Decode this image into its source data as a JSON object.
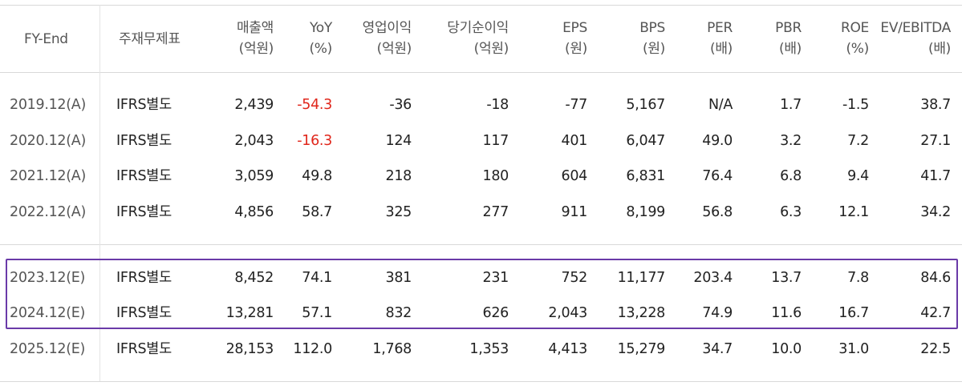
{
  "header": {
    "fy_end": "FY-End",
    "type": "주재무제표",
    "columns": [
      {
        "label": "매출액",
        "unit": "(억원)"
      },
      {
        "label": "YoY",
        "unit": "(%)"
      },
      {
        "label": "영업이익",
        "unit": "(억원)"
      },
      {
        "label": "당기순이익",
        "unit": "(억원)"
      },
      {
        "label": "EPS",
        "unit": "(원)"
      },
      {
        "label": "BPS",
        "unit": "(원)"
      },
      {
        "label": "PER",
        "unit": "(배)"
      },
      {
        "label": "PBR",
        "unit": "(배)"
      },
      {
        "label": "ROE",
        "unit": "(%)"
      },
      {
        "label": "EV/EBITDA",
        "unit": "(배)"
      }
    ]
  },
  "rows": [
    {
      "fy": "2019.12(A)",
      "type": "IFRS별도",
      "values": [
        "2,439",
        "-54.3",
        "-36",
        "-18",
        "-77",
        "5,167",
        "N/A",
        "1.7",
        "-1.5",
        "38.7"
      ],
      "yoy_negative": true
    },
    {
      "fy": "2020.12(A)",
      "type": "IFRS별도",
      "values": [
        "2,043",
        "-16.3",
        "124",
        "117",
        "401",
        "6,047",
        "49.0",
        "3.2",
        "7.2",
        "27.1"
      ],
      "yoy_negative": true
    },
    {
      "fy": "2021.12(A)",
      "type": "IFRS별도",
      "values": [
        "3,059",
        "49.8",
        "218",
        "180",
        "604",
        "6,831",
        "76.4",
        "6.8",
        "9.4",
        "41.7"
      ],
      "yoy_negative": false
    },
    {
      "fy": "2022.12(A)",
      "type": "IFRS별도",
      "values": [
        "4,856",
        "58.7",
        "325",
        "277",
        "911",
        "8,199",
        "56.8",
        "6.3",
        "12.1",
        "34.2"
      ],
      "yoy_negative": false
    },
    {
      "fy": "2023.12(E)",
      "type": "IFRS별도",
      "values": [
        "8,452",
        "74.1",
        "381",
        "231",
        "752",
        "11,177",
        "203.4",
        "13.7",
        "7.8",
        "84.6"
      ],
      "yoy_negative": false
    },
    {
      "fy": "2024.12(E)",
      "type": "IFRS별도",
      "values": [
        "13,281",
        "57.1",
        "832",
        "626",
        "2,043",
        "13,228",
        "74.9",
        "11.6",
        "16.7",
        "42.7"
      ],
      "yoy_negative": false
    },
    {
      "fy": "2025.12(E)",
      "type": "IFRS별도",
      "values": [
        "28,153",
        "112.0",
        "1,768",
        "1,353",
        "4,413",
        "15,279",
        "34.7",
        "10.0",
        "31.0",
        "22.5"
      ],
      "yoy_negative": false
    }
  ],
  "colors": {
    "negative": "#e0261b",
    "highlight_border": "#6a3aa8",
    "rule": "#d9d9d9"
  }
}
